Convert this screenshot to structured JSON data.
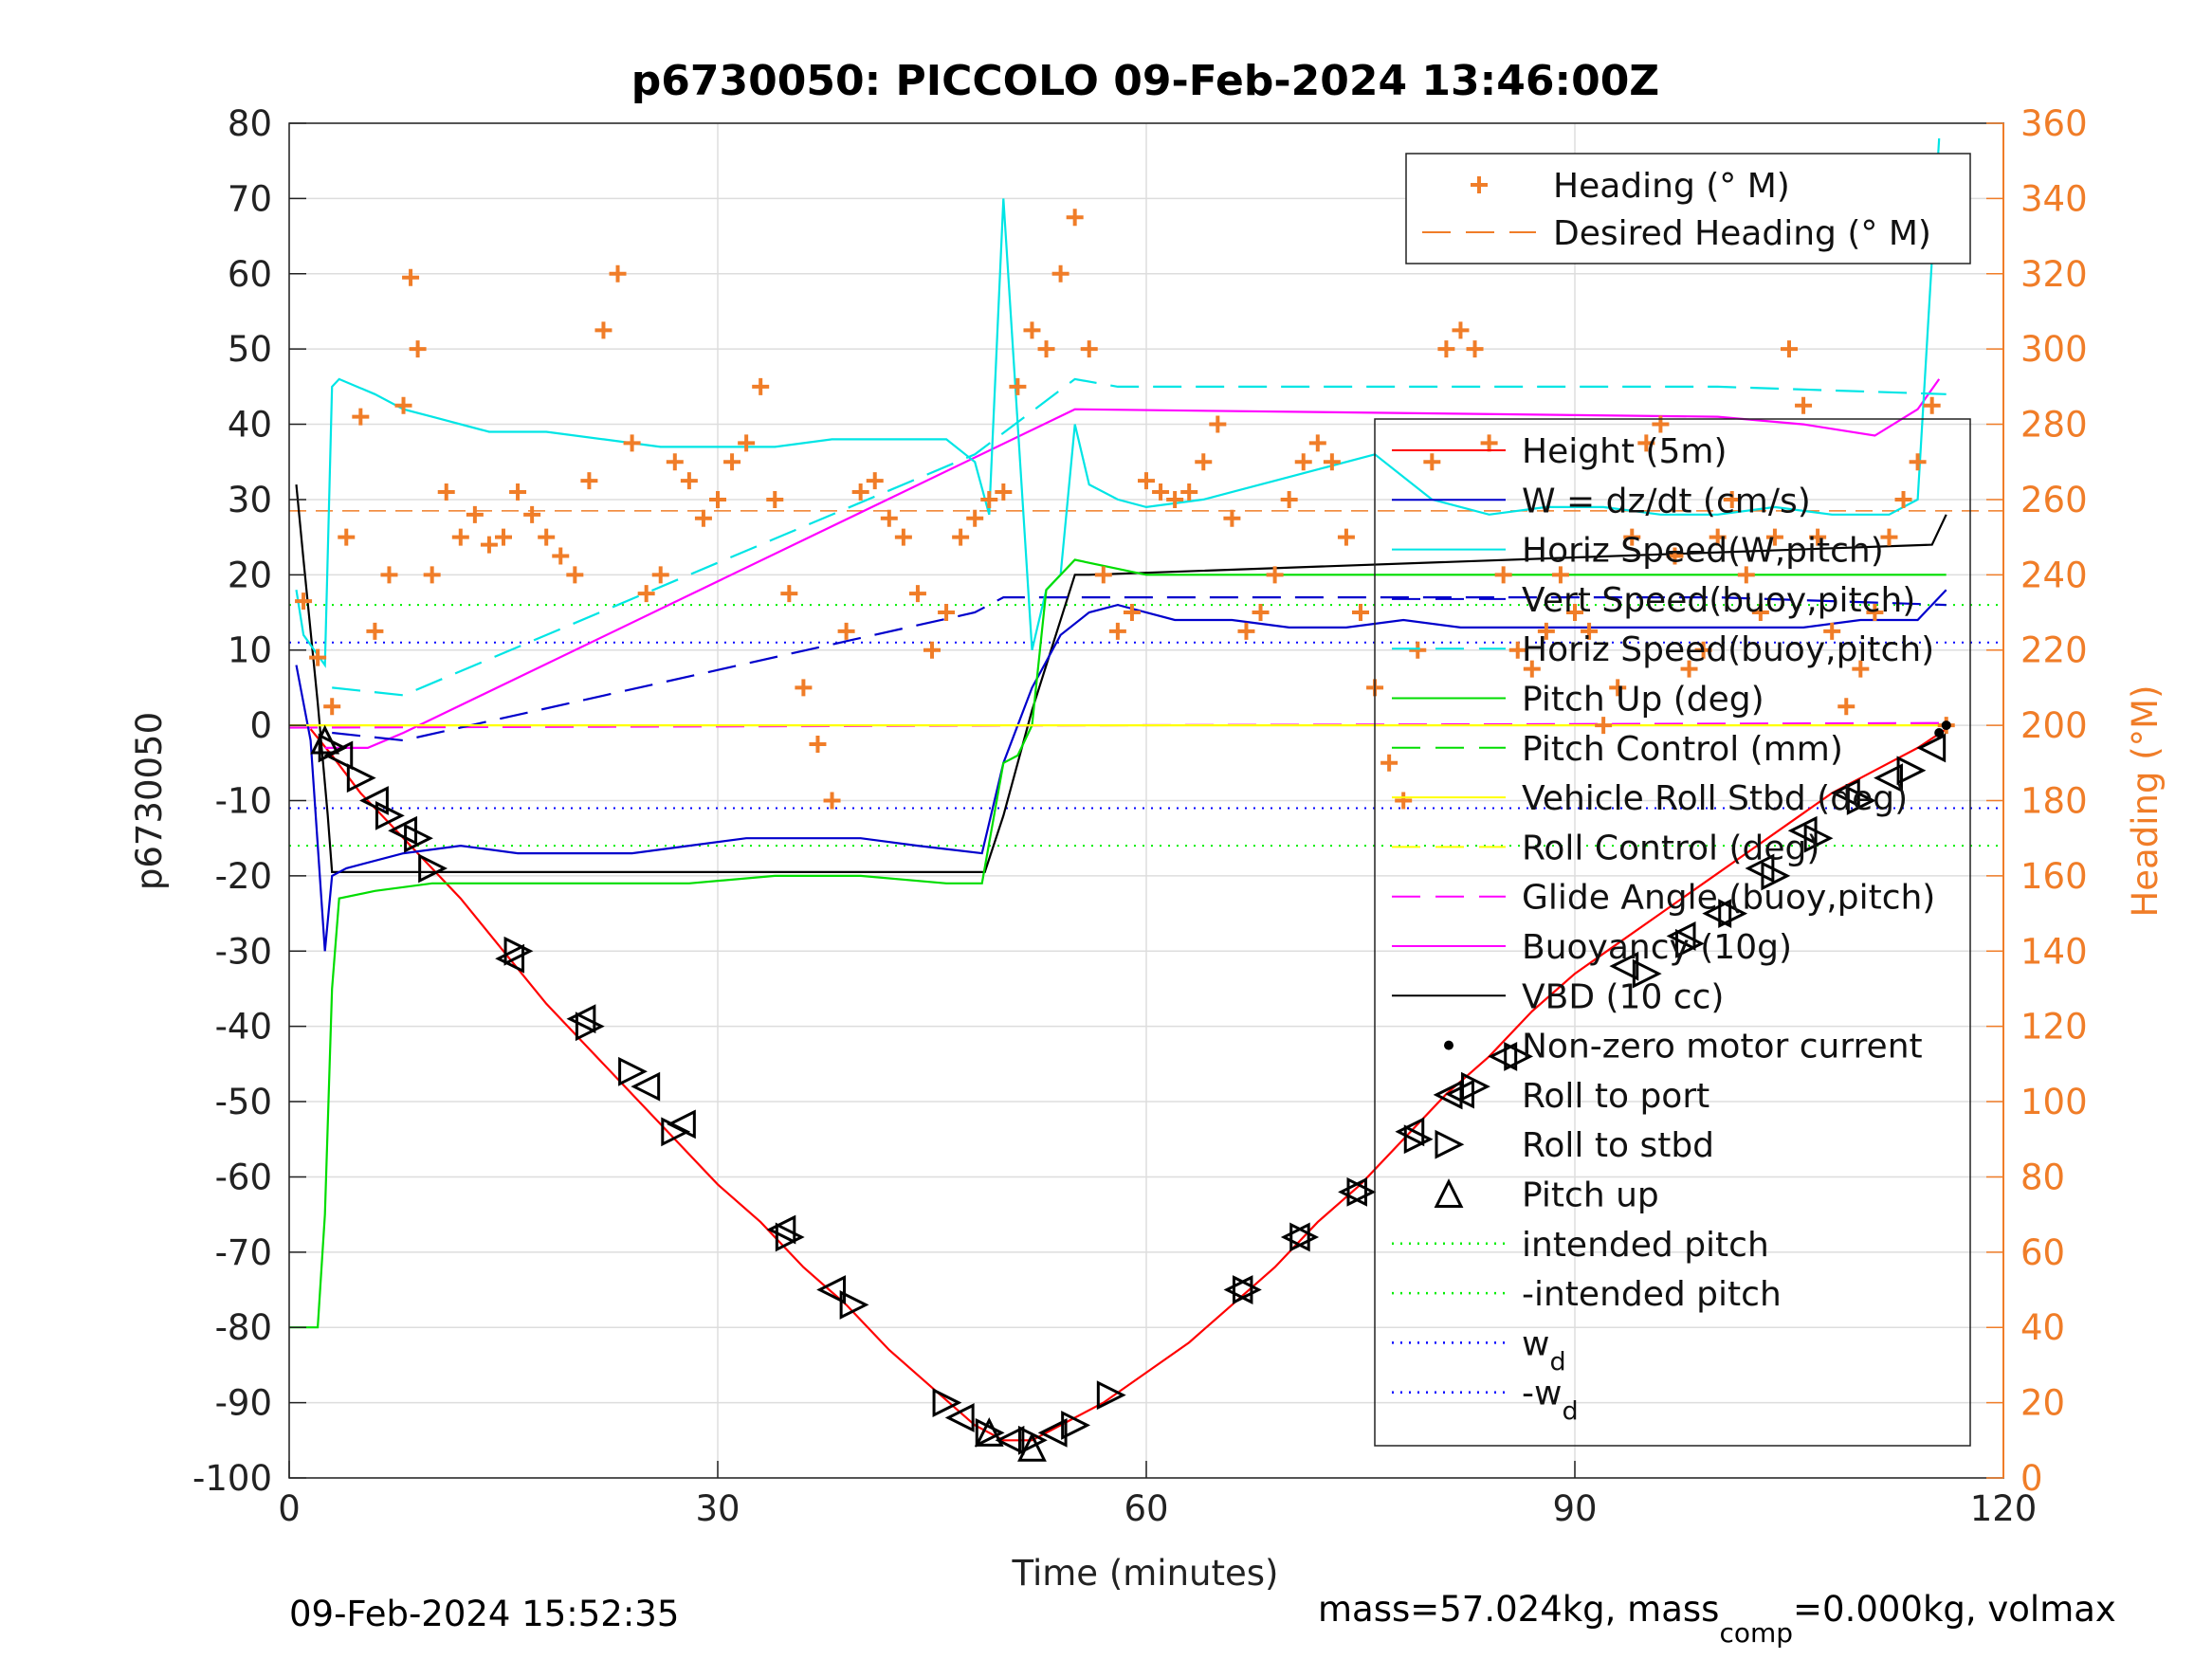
{
  "chart_data": {
    "type": "line",
    "title": "p6730050: PICCOLO 09-Feb-2024 13:46:00Z",
    "xlabel": "Time (minutes)",
    "ylabel": "p6730050",
    "y2label": "Heading (°M)",
    "xlim": [
      0,
      120
    ],
    "ylim": [
      -100,
      80
    ],
    "y2lim": [
      0,
      360
    ],
    "xticks": [
      0,
      30,
      60,
      90,
      120
    ],
    "yticks": [
      -100,
      -90,
      -80,
      -70,
      -60,
      -50,
      -40,
      -30,
      -20,
      -10,
      0,
      10,
      20,
      30,
      40,
      50,
      60,
      70,
      80
    ],
    "y2ticks": [
      0,
      20,
      40,
      60,
      80,
      100,
      120,
      140,
      160,
      180,
      200,
      220,
      240,
      260,
      280,
      300,
      320,
      340,
      360
    ],
    "grid": true,
    "footer_left": "09-Feb-2024 15:52:35",
    "footer_right_parts": [
      "mass=57.024kg, mass",
      "comp",
      "=0.000kg, volmax"
    ],
    "legend_top": {
      "placement": "top-right",
      "entries": [
        {
          "label": "Heading (° M)",
          "color": "#f07d28",
          "style": "plus"
        },
        {
          "label": "Desired Heading (° M)",
          "color": "#f07d28",
          "style": "dash"
        }
      ]
    },
    "legend_main": {
      "placement": "right",
      "entries": [
        {
          "label": "Height (5m)",
          "color": "#ff0000",
          "style": "line"
        },
        {
          "label": "W = dz/dt (cm/s)",
          "color": "#0000cc",
          "style": "line"
        },
        {
          "label": "Horiz Speed(W,pitch)",
          "color": "#00e5e5",
          "style": "line"
        },
        {
          "label": "Vert Speed(buoy,pitch)",
          "color": "#0000cc",
          "style": "dash"
        },
        {
          "label": "Horiz Speed(buoy,pitch)",
          "color": "#00e5e5",
          "style": "dash"
        },
        {
          "label": "Pitch Up (deg)",
          "color": "#00dd00",
          "style": "line"
        },
        {
          "label": "Pitch Control (mm)",
          "color": "#00dd00",
          "style": "dash"
        },
        {
          "label": "Vehicle Roll Stbd (deg)",
          "color": "#ffff00",
          "style": "line"
        },
        {
          "label": "Roll Control (deg)",
          "color": "#ffff00",
          "style": "dash"
        },
        {
          "label": "Glide Angle (buoy,pitch)",
          "color": "#ff00ff",
          "style": "dash"
        },
        {
          "label": "Buoyancy (10g)",
          "color": "#ff00ff",
          "style": "line"
        },
        {
          "label": "VBD (10 cc)",
          "color": "#000000",
          "style": "line"
        },
        {
          "label": "Non-zero motor current",
          "color": "#000000",
          "style": "dot"
        },
        {
          "label": "Roll to port",
          "color": "#000000",
          "style": "tri-left"
        },
        {
          "label": "Roll to stbd",
          "color": "#000000",
          "style": "tri-right"
        },
        {
          "label": "Pitch up",
          "color": "#000000",
          "style": "tri-up"
        },
        {
          "label": "intended pitch",
          "color": "#00ee00",
          "style": "dot-line"
        },
        {
          "label": "-intended pitch",
          "color": "#00ee00",
          "style": "dot-line"
        },
        {
          "label": "w",
          "sub": "d",
          "color": "#0000ff",
          "style": "dot-line"
        },
        {
          "label": "-w",
          "sub": "d",
          "color": "#0000ff",
          "style": "dot-line"
        }
      ]
    },
    "reference_lines": {
      "intended_pitch": 16,
      "neg_intended_pitch": -16,
      "wd": 11,
      "neg_wd": -11,
      "desired_heading": 257
    },
    "series": [
      {
        "name": "Height (5m)",
        "color": "#ff0000",
        "style": "solid",
        "x": [
          1.5,
          3,
          5,
          7,
          9,
          12,
          15,
          18,
          21,
          24,
          27,
          30,
          33,
          36,
          39,
          42,
          45,
          48,
          50,
          52,
          54,
          57,
          60,
          63,
          66,
          69,
          72,
          75,
          78,
          81,
          84,
          87,
          90,
          93,
          96,
          99,
          102,
          105,
          108,
          111,
          114,
          116
        ],
        "y": [
          -0.5,
          -4,
          -9,
          -13,
          -17,
          -23,
          -30,
          -37,
          -43,
          -49,
          -55,
          -61,
          -66,
          -72,
          -77,
          -83,
          -88,
          -93,
          -95,
          -95,
          -93,
          -90,
          -86,
          -82,
          -77,
          -72,
          -66,
          -61,
          -55,
          -49,
          -44,
          -38,
          -33,
          -29,
          -25,
          -21,
          -17,
          -13,
          -9,
          -6,
          -3,
          -0.5
        ]
      },
      {
        "name": "VBD (10 cc)",
        "color": "#000000",
        "style": "solid",
        "x": [
          0.5,
          1,
          2,
          2.7,
          3,
          48.7,
          50,
          52,
          55,
          56,
          115,
          116
        ],
        "y": [
          32,
          22,
          3,
          -12,
          -19.5,
          -19.5,
          -12,
          2,
          20,
          20,
          24,
          28
        ]
      },
      {
        "name": "Buoyancy (10g)",
        "color": "#ff00ff",
        "style": "solid",
        "x": [
          2.5,
          5.5,
          8,
          55,
          100,
          106,
          111,
          114,
          115.5
        ],
        "y": [
          -3,
          -3,
          -1,
          42,
          41,
          40,
          38.5,
          42,
          46
        ]
      },
      {
        "name": "Glide Angle (buoy,pitch)",
        "color": "#ff00ff",
        "style": "dash",
        "x": [
          0,
          116
        ],
        "y": [
          -0.3,
          0.3
        ]
      },
      {
        "name": "Vert Speed(buoy,pitch)",
        "color": "#0000cc",
        "style": "dash",
        "x": [
          3,
          8,
          48,
          50,
          56,
          100,
          116
        ],
        "y": [
          -1,
          -2,
          15,
          17,
          17,
          17,
          16
        ]
      },
      {
        "name": "Horiz Speed(buoy,pitch)",
        "color": "#00e5e5",
        "style": "dash",
        "x": [
          3,
          8,
          48,
          55,
          58,
          100,
          116
        ],
        "y": [
          5,
          4,
          36,
          46,
          45,
          45,
          44
        ]
      },
      {
        "name": "Horiz Speed(W,pitch)",
        "color": "#00e5e5",
        "style": "solid",
        "x": [
          0.5,
          1,
          2.5,
          3,
          3.5,
          6,
          8,
          10,
          14,
          18,
          22,
          26,
          30,
          34,
          38,
          42,
          46,
          48,
          49,
          50,
          51,
          52,
          53,
          54,
          55,
          56,
          58,
          60,
          64,
          68,
          72,
          76,
          80,
          84,
          88,
          92,
          96,
          100,
          104,
          108,
          112,
          114,
          115.5
        ],
        "y": [
          18,
          12,
          8,
          45,
          46,
          44,
          42,
          41,
          39,
          39,
          38,
          37,
          37,
          37,
          38,
          38,
          38,
          35,
          28,
          70,
          40,
          10,
          18,
          20,
          40,
          32,
          30,
          29,
          30,
          32,
          34,
          36,
          30,
          28,
          29,
          29,
          28,
          28,
          29,
          28,
          28,
          30,
          78
        ]
      },
      {
        "name": "W = dz/dt (cm/s)",
        "color": "#0000cc",
        "style": "solid",
        "x": [
          0.5,
          1.5,
          2.5,
          3,
          4,
          8,
          12,
          16,
          20,
          24,
          28,
          32,
          36,
          40,
          44,
          48.5,
          50,
          52,
          54,
          56,
          58,
          62,
          66,
          70,
          74,
          78,
          82,
          86,
          90,
          94,
          98,
          102,
          106,
          110,
          114,
          116
        ],
        "y": [
          8,
          -2,
          -30,
          -20,
          -19,
          -17,
          -16,
          -17,
          -17,
          -17,
          -16,
          -15,
          -15,
          -15,
          -16,
          -17,
          -5,
          5,
          12,
          15,
          16,
          14,
          14,
          13,
          13,
          14,
          13,
          13,
          13,
          13,
          13,
          13,
          13,
          14,
          14,
          18
        ]
      },
      {
        "name": "Pitch Up (deg)",
        "color": "#00dd00",
        "style": "solid",
        "x": [
          0,
          2,
          2.5,
          3,
          3.5,
          6,
          10,
          16,
          22,
          28,
          34,
          40,
          46,
          48.5,
          50,
          51,
          52,
          53,
          55,
          60,
          70,
          80,
          90,
          100,
          110,
          115,
          116
        ],
        "y": [
          -80,
          -80,
          -65,
          -35,
          -23,
          -22,
          -21,
          -21,
          -21,
          -21,
          -20,
          -20,
          -21,
          -21,
          -5,
          -4,
          0,
          18,
          22,
          20,
          20,
          20,
          20,
          20,
          20,
          20,
          20
        ]
      },
      {
        "name": "Vehicle Roll Stbd (deg)",
        "color": "#ffff00",
        "style": "solid",
        "x": [
          0,
          3,
          5,
          8,
          12,
          20,
          30,
          40,
          50,
          60,
          70,
          80,
          90,
          100,
          110,
          116
        ],
        "y": [
          0,
          0,
          0,
          0,
          0,
          0,
          0,
          0,
          0,
          0,
          0,
          0,
          0,
          0,
          0,
          0
        ]
      },
      {
        "name": "Heading (° M)",
        "color": "#f07d28",
        "style": "plus",
        "axis": "right",
        "x": [
          1,
          2,
          3,
          4,
          5,
          6,
          7,
          8,
          8.5,
          9,
          10,
          11,
          12,
          13,
          14,
          15,
          16,
          17,
          18,
          19,
          20,
          21,
          22,
          23,
          24,
          25,
          26,
          27,
          28,
          29,
          30,
          31,
          32,
          33,
          34,
          35,
          36,
          37,
          38,
          39,
          40,
          41,
          42,
          43,
          44,
          45,
          46,
          47,
          48,
          49,
          50,
          51,
          52,
          53,
          54,
          55,
          56,
          57,
          58,
          59,
          60,
          61,
          62,
          63,
          64,
          65,
          66,
          67,
          68,
          69,
          70,
          71,
          72,
          73,
          74,
          75,
          76,
          77,
          78,
          79,
          80,
          81,
          82,
          83,
          84,
          85,
          86,
          87,
          88,
          89,
          90,
          91,
          92,
          93,
          94,
          95,
          96,
          97,
          98,
          99,
          100,
          101,
          102,
          103,
          104,
          105,
          106,
          107,
          108,
          109,
          110,
          111,
          112,
          113,
          114,
          115,
          116
        ],
        "y": [
          233,
          218,
          205,
          250,
          282,
          225,
          240,
          285,
          319,
          300,
          240,
          262,
          250,
          256,
          248,
          250,
          262,
          256,
          250,
          245,
          240,
          265,
          305,
          320,
          275,
          235,
          240,
          270,
          265,
          255,
          260,
          270,
          275,
          290,
          260,
          235,
          210,
          195,
          180,
          225,
          262,
          265,
          255,
          250,
          235,
          220,
          230,
          250,
          255,
          260,
          262,
          290,
          305,
          300,
          320,
          335,
          300,
          240,
          225,
          230,
          265,
          262,
          260,
          262,
          270,
          280,
          255,
          225,
          230,
          240,
          260,
          270,
          275,
          270,
          250,
          230,
          210,
          190,
          180,
          220,
          270,
          300,
          305,
          300,
          275,
          240,
          220,
          215,
          225,
          240,
          230,
          225,
          200,
          210,
          250,
          275,
          280,
          245,
          215,
          220,
          250,
          260,
          240,
          230,
          250,
          300,
          285,
          250,
          225,
          205,
          215,
          230,
          250,
          260,
          270,
          285,
          200
        ]
      }
    ],
    "markers": {
      "tri_right": {
        "x": [
          3,
          5,
          7,
          9,
          10,
          16,
          21,
          24,
          27,
          35,
          39.5,
          46,
          49,
          52,
          55,
          57.5,
          67,
          71,
          75,
          79,
          83,
          86,
          95,
          98,
          101,
          104,
          107,
          110,
          113.5
        ],
        "y": [
          -3,
          -7,
          -12,
          -15,
          -19,
          -30,
          -40,
          -46,
          -54,
          -68,
          -77,
          -90,
          -94,
          -95,
          -93,
          -89,
          -75,
          -68,
          -62,
          -55,
          -48,
          -44,
          -33,
          -29,
          -25,
          -20,
          -15,
          -10,
          -6
        ]
      },
      "tri_left": {
        "x": [
          3.5,
          6,
          8,
          15.5,
          20.5,
          25,
          27.5,
          34.5,
          38,
          47,
          50.5,
          53.5,
          66.5,
          70.5,
          74.5,
          78.5,
          82,
          85,
          93.5,
          97.5,
          100,
          103,
          106,
          109,
          112,
          115
        ],
        "y": [
          -4,
          -10,
          -14,
          -31,
          -39,
          -48,
          -53,
          -67,
          -75,
          -92,
          -95,
          -94,
          -75,
          -68,
          -62,
          -54,
          -49,
          -44,
          -32,
          -28,
          -25,
          -19,
          -14,
          -9,
          -7,
          -3
        ]
      },
      "tri_up": {
        "x": [
          2.5,
          49,
          52
        ],
        "y": [
          -2,
          -94,
          -96
        ]
      },
      "dots": {
        "x": [
          115.5,
          116
        ],
        "y": [
          -1,
          0
        ]
      }
    }
  }
}
